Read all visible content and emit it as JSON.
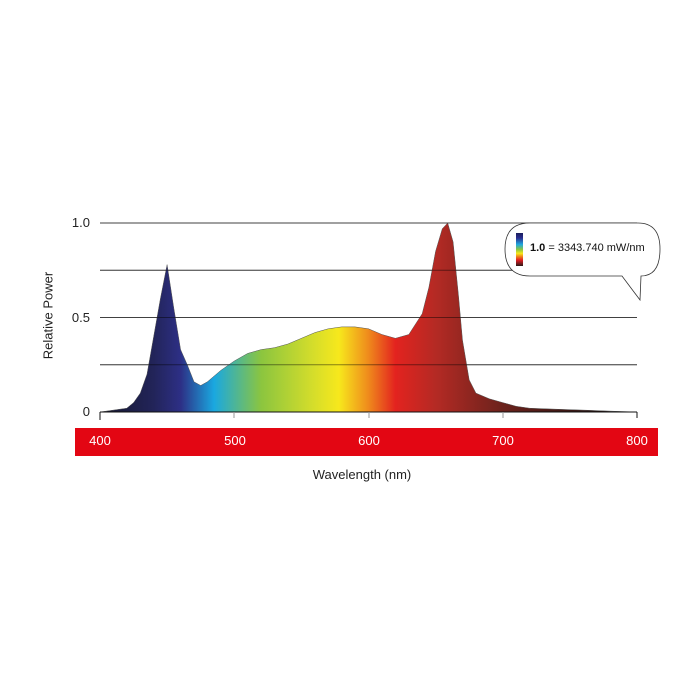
{
  "chart_data": {
    "type": "area",
    "title": "",
    "xlabel": "Wavelength (nm)",
    "ylabel": "Relative Power",
    "xlim": [
      400,
      800
    ],
    "ylim": [
      0,
      1.0
    ],
    "x_ticks": [
      "400",
      "500",
      "600",
      "700",
      "800"
    ],
    "y_ticks": [
      "0",
      "0.5",
      "1.0"
    ],
    "gridlines_y": [
      0.25,
      0.5,
      0.75,
      1.0
    ],
    "grid": true,
    "annotation": {
      "bold": "1.0",
      "text": " = 3343.740 mW/nm"
    },
    "series": [
      {
        "name": "Relative Power",
        "x": [
          400,
          410,
          420,
          425,
          430,
          435,
          440,
          445,
          450,
          455,
          460,
          465,
          470,
          475,
          480,
          490,
          500,
          510,
          520,
          530,
          540,
          550,
          560,
          570,
          580,
          590,
          600,
          610,
          620,
          630,
          640,
          645,
          650,
          655,
          659,
          663,
          667,
          670,
          675,
          680,
          690,
          700,
          710,
          720,
          740,
          760,
          780,
          800
        ],
        "y": [
          0.0,
          0.01,
          0.02,
          0.05,
          0.1,
          0.2,
          0.4,
          0.6,
          0.78,
          0.55,
          0.33,
          0.25,
          0.16,
          0.14,
          0.16,
          0.22,
          0.27,
          0.31,
          0.33,
          0.34,
          0.36,
          0.39,
          0.42,
          0.44,
          0.45,
          0.45,
          0.44,
          0.41,
          0.39,
          0.41,
          0.52,
          0.66,
          0.85,
          0.97,
          1.0,
          0.9,
          0.62,
          0.38,
          0.17,
          0.1,
          0.07,
          0.05,
          0.03,
          0.02,
          0.015,
          0.01,
          0.005,
          0.0
        ]
      }
    ],
    "colors": {
      "axis_bar": "#e30613",
      "gridline": "#777777",
      "spectrum_stops": [
        {
          "nm": 400,
          "color": "#15172e"
        },
        {
          "nm": 440,
          "color": "#222459"
        },
        {
          "nm": 460,
          "color": "#2d2f85"
        },
        {
          "nm": 485,
          "color": "#1aa8e0"
        },
        {
          "nm": 520,
          "color": "#8bc53f"
        },
        {
          "nm": 560,
          "color": "#d7de2a"
        },
        {
          "nm": 578,
          "color": "#f7e81c"
        },
        {
          "nm": 600,
          "color": "#ef8a1c"
        },
        {
          "nm": 620,
          "color": "#e3231f"
        },
        {
          "nm": 650,
          "color": "#b42a24"
        },
        {
          "nm": 700,
          "color": "#6b221c"
        },
        {
          "nm": 800,
          "color": "#0b0b0b"
        }
      ]
    }
  },
  "labels": {
    "y_axis": "Relative Power",
    "x_axis": "Wavelength (nm)",
    "y_tick_0": "0",
    "y_tick_05": "0.5",
    "y_tick_1": "1.0",
    "x_tick_400": "400",
    "x_tick_500": "500",
    "x_tick_600": "600",
    "x_tick_700": "700",
    "x_tick_800": "800",
    "callout_bold": "1.0",
    "callout_text": " = 3343.740 mW/nm"
  }
}
